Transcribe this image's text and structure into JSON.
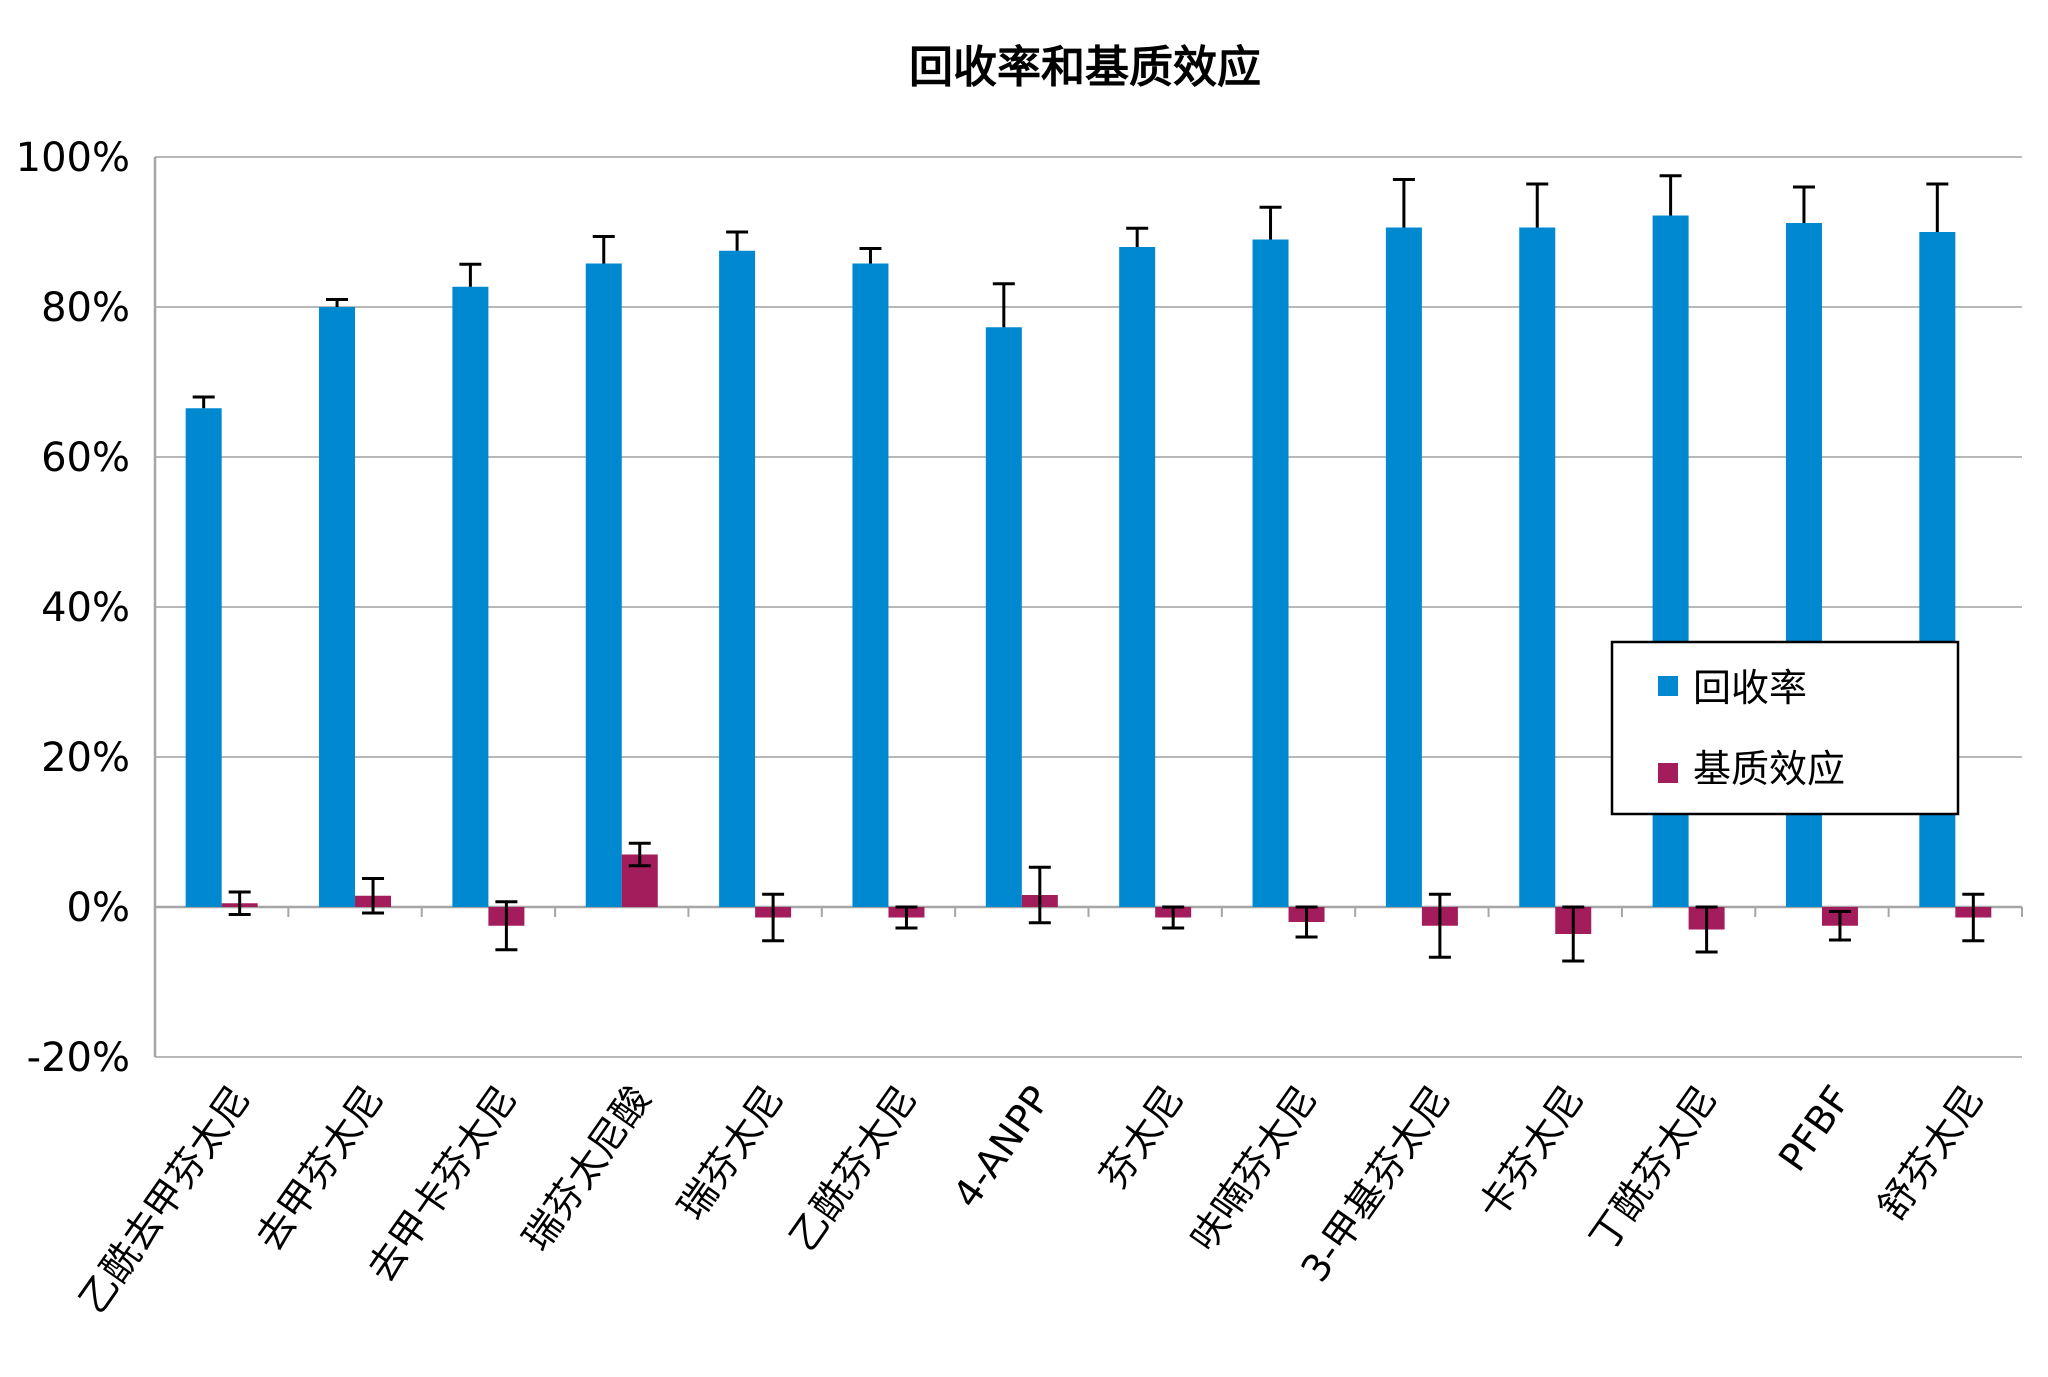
{
  "chart_data": {
    "type": "bar",
    "title": "回收率和基质效应",
    "xlabel": "",
    "ylabel": "",
    "ylim": [
      -20,
      100
    ],
    "ytick_step": 20,
    "ytick_labels": [
      "-20%",
      "0%",
      "20%",
      "40%",
      "60%",
      "80%",
      "100%"
    ],
    "grid": true,
    "legend_position": "right-middle",
    "categories": [
      "乙酰去甲芬太尼",
      "去甲芬太尼",
      "去甲卡芬太尼",
      "瑞芬太尼酸",
      "瑞芬太尼",
      "乙酰芬太尼",
      "4-ANPP",
      "芬太尼",
      "呋喃芬太尼",
      "3-甲基芬太尼",
      "卡芬太尼",
      "丁酰芬太尼",
      "PFBF",
      "舒芬太尼"
    ],
    "series": [
      {
        "name": "回收率",
        "color": "#0089D0",
        "values": [
          66.5,
          80,
          82.7,
          85.8,
          87.5,
          85.8,
          77.3,
          88,
          89,
          90.6,
          90.6,
          92.2,
          91.2,
          90
        ],
        "error": [
          1.5,
          1,
          3,
          3.6,
          2.5,
          2,
          5.8,
          2.5,
          4.3,
          6.4,
          5.8,
          5.3,
          4.8,
          6.4
        ]
      },
      {
        "name": "基质效应",
        "color": "#A31C5C",
        "values": [
          0.5,
          1.5,
          -2.5,
          7,
          -1.4,
          -1.4,
          1.6,
          -1.4,
          -2,
          -2.5,
          -3.6,
          -3,
          -2.5,
          -1.4
        ],
        "error": [
          1.5,
          2.3,
          3.2,
          1.5,
          3.1,
          1.4,
          3.7,
          1.4,
          2,
          4.2,
          3.6,
          3,
          1.9,
          3.1
        ]
      }
    ]
  }
}
